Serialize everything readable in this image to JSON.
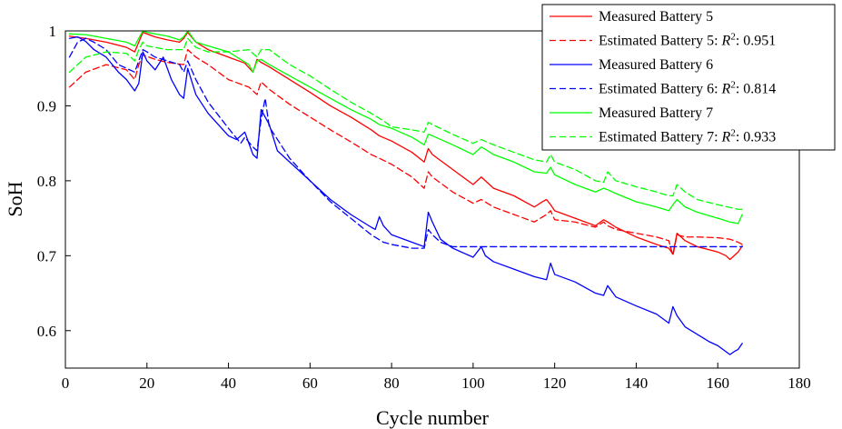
{
  "chart_data": {
    "type": "line",
    "xlabel": "Cycle number",
    "ylabel": "SoH",
    "xlim": [
      0,
      180
    ],
    "ylim": [
      0.55,
      1.0
    ],
    "xticks": [
      0,
      20,
      40,
      60,
      80,
      100,
      120,
      140,
      160,
      180
    ],
    "yticks": [
      0.6,
      0.7,
      0.8,
      0.9,
      1.0
    ],
    "ytick_labels": [
      "0.6",
      "0.7",
      "0.8",
      "0.9",
      "1"
    ],
    "grid": false,
    "legend_position": "top-right",
    "series": [
      {
        "name": "Measured Battery 5",
        "label_text": "Measured Battery 5",
        "color": "#ff0000",
        "dash": "solid",
        "x": [
          1,
          5,
          10,
          15,
          17,
          18,
          19,
          22,
          25,
          28,
          29,
          30,
          32,
          35,
          40,
          44,
          46,
          47,
          48,
          50,
          55,
          60,
          65,
          70,
          75,
          77,
          80,
          85,
          88,
          89,
          90,
          95,
          100,
          102,
          105,
          110,
          115,
          117,
          118,
          119,
          120,
          125,
          130,
          132,
          133,
          135,
          140,
          145,
          148,
          149,
          150,
          152,
          155,
          160,
          162,
          163,
          165,
          166
        ],
        "y": [
          0.993,
          0.99,
          0.985,
          0.978,
          0.972,
          0.985,
          0.998,
          0.992,
          0.988,
          0.985,
          0.99,
          0.998,
          0.985,
          0.975,
          0.965,
          0.957,
          0.945,
          0.962,
          0.958,
          0.952,
          0.935,
          0.918,
          0.9,
          0.885,
          0.868,
          0.86,
          0.853,
          0.838,
          0.825,
          0.843,
          0.835,
          0.815,
          0.795,
          0.805,
          0.79,
          0.78,
          0.765,
          0.772,
          0.775,
          0.768,
          0.76,
          0.75,
          0.74,
          0.748,
          0.745,
          0.738,
          0.725,
          0.715,
          0.71,
          0.702,
          0.73,
          0.72,
          0.712,
          0.705,
          0.7,
          0.695,
          0.705,
          0.713
        ]
      },
      {
        "name": "Estimated Battery 5",
        "label_text": "Estimated Battery 5: ",
        "r2_value": "0.951",
        "color": "#ff0000",
        "dash": "dashed",
        "x": [
          1,
          5,
          10,
          15,
          17,
          18,
          19,
          22,
          25,
          29,
          30,
          32,
          35,
          40,
          45,
          47,
          48,
          50,
          55,
          60,
          65,
          70,
          75,
          77,
          80,
          85,
          88,
          89,
          90,
          95,
          100,
          102,
          105,
          110,
          115,
          118,
          119,
          120,
          125,
          130,
          132,
          133,
          135,
          140,
          145,
          148,
          149,
          150,
          152,
          155,
          160,
          163,
          165,
          166
        ],
        "y": [
          0.925,
          0.945,
          0.955,
          0.948,
          0.935,
          0.955,
          0.968,
          0.962,
          0.958,
          0.955,
          0.975,
          0.965,
          0.955,
          0.935,
          0.925,
          0.915,
          0.932,
          0.922,
          0.902,
          0.885,
          0.868,
          0.852,
          0.835,
          0.83,
          0.822,
          0.805,
          0.79,
          0.812,
          0.805,
          0.785,
          0.77,
          0.775,
          0.765,
          0.755,
          0.745,
          0.755,
          0.76,
          0.748,
          0.745,
          0.738,
          0.745,
          0.74,
          0.735,
          0.73,
          0.725,
          0.72,
          0.7,
          0.728,
          0.725,
          0.725,
          0.724,
          0.722,
          0.718,
          0.715
        ]
      },
      {
        "name": "Measured Battery 6",
        "label_text": "Measured Battery 6",
        "color": "#0000ff",
        "dash": "solid",
        "x": [
          1,
          3,
          5,
          7,
          10,
          13,
          15,
          17,
          18,
          19,
          20,
          22,
          24,
          26,
          28,
          29,
          30,
          32,
          35,
          38,
          40,
          42,
          44,
          46,
          47,
          48,
          50,
          52,
          55,
          60,
          65,
          70,
          75,
          76,
          77,
          78,
          80,
          85,
          88,
          89,
          90,
          92,
          95,
          100,
          102,
          103,
          105,
          110,
          115,
          118,
          119,
          120,
          125,
          130,
          132,
          133,
          135,
          140,
          145,
          148,
          149,
          150,
          152,
          155,
          158,
          160,
          162,
          163,
          164,
          165,
          166
        ],
        "y": [
          0.99,
          0.992,
          0.986,
          0.975,
          0.965,
          0.945,
          0.935,
          0.92,
          0.93,
          0.972,
          0.96,
          0.948,
          0.965,
          0.935,
          0.915,
          0.91,
          0.95,
          0.915,
          0.89,
          0.872,
          0.86,
          0.855,
          0.865,
          0.835,
          0.83,
          0.895,
          0.875,
          0.84,
          0.825,
          0.8,
          0.775,
          0.755,
          0.738,
          0.735,
          0.752,
          0.74,
          0.728,
          0.718,
          0.712,
          0.758,
          0.745,
          0.722,
          0.71,
          0.698,
          0.712,
          0.7,
          0.692,
          0.682,
          0.672,
          0.668,
          0.69,
          0.675,
          0.665,
          0.65,
          0.647,
          0.66,
          0.645,
          0.633,
          0.622,
          0.61,
          0.632,
          0.62,
          0.605,
          0.595,
          0.585,
          0.58,
          0.572,
          0.568,
          0.572,
          0.575,
          0.583
        ]
      },
      {
        "name": "Estimated Battery 6",
        "label_text": "Estimated Battery 6: ",
        "r2_value": "0.814",
        "color": "#0000ff",
        "dash": "dashed",
        "x": [
          1,
          3,
          5,
          7,
          10,
          13,
          15,
          17,
          18,
          19,
          20,
          22,
          25,
          28,
          29,
          30,
          32,
          35,
          40,
          43,
          44,
          46,
          47,
          48,
          49,
          50,
          55,
          60,
          65,
          70,
          75,
          78,
          80,
          85,
          88,
          89,
          90,
          92,
          95,
          100,
          110,
          120,
          130,
          140,
          150,
          160,
          166
        ],
        "y": [
          0.965,
          0.985,
          0.99,
          0.985,
          0.975,
          0.955,
          0.95,
          0.945,
          0.96,
          0.975,
          0.972,
          0.965,
          0.96,
          0.955,
          0.945,
          0.96,
          0.935,
          0.905,
          0.87,
          0.85,
          0.858,
          0.845,
          0.84,
          0.882,
          0.91,
          0.872,
          0.83,
          0.8,
          0.772,
          0.75,
          0.728,
          0.718,
          0.715,
          0.71,
          0.71,
          0.735,
          0.728,
          0.718,
          0.712,
          0.712,
          0.712,
          0.712,
          0.712,
          0.712,
          0.712,
          0.712,
          0.712
        ]
      },
      {
        "name": "Measured Battery 7",
        "label_text": "Measured Battery 7",
        "color": "#00ff00",
        "dash": "solid",
        "x": [
          1,
          5,
          10,
          15,
          17,
          18,
          19,
          20,
          25,
          28,
          29,
          30,
          32,
          35,
          40,
          45,
          46,
          47,
          48,
          50,
          55,
          60,
          65,
          70,
          75,
          77,
          80,
          85,
          88,
          89,
          90,
          95,
          100,
          102,
          103,
          105,
          110,
          115,
          118,
          119,
          120,
          125,
          130,
          132,
          133,
          135,
          140,
          145,
          148,
          149,
          150,
          152,
          155,
          160,
          163,
          165,
          166
        ],
        "y": [
          0.996,
          0.995,
          0.99,
          0.985,
          0.98,
          0.99,
          1.0,
          0.998,
          0.993,
          0.988,
          0.992,
          1.0,
          0.985,
          0.98,
          0.972,
          0.955,
          0.945,
          0.96,
          0.962,
          0.955,
          0.94,
          0.925,
          0.91,
          0.895,
          0.882,
          0.875,
          0.87,
          0.858,
          0.848,
          0.862,
          0.86,
          0.848,
          0.835,
          0.845,
          0.842,
          0.835,
          0.825,
          0.812,
          0.81,
          0.818,
          0.808,
          0.795,
          0.785,
          0.79,
          0.788,
          0.783,
          0.772,
          0.765,
          0.76,
          0.768,
          0.775,
          0.765,
          0.758,
          0.75,
          0.745,
          0.743,
          0.755
        ]
      },
      {
        "name": "Estimated Battery 7",
        "label_text": "Estimated Battery 7: ",
        "r2_value": "0.933",
        "color": "#00ff00",
        "dash": "dashed",
        "x": [
          1,
          5,
          10,
          15,
          17,
          18,
          19,
          20,
          25,
          29,
          30,
          32,
          35,
          40,
          45,
          47,
          48,
          50,
          55,
          60,
          65,
          70,
          75,
          78,
          80,
          85,
          88,
          89,
          90,
          95,
          100,
          102,
          105,
          110,
          115,
          118,
          119,
          120,
          125,
          130,
          132,
          133,
          135,
          140,
          145,
          148,
          149,
          150,
          152,
          155,
          160,
          165,
          166
        ],
        "y": [
          0.945,
          0.965,
          0.972,
          0.97,
          0.96,
          0.975,
          0.985,
          0.98,
          0.975,
          0.975,
          0.99,
          0.978,
          0.972,
          0.972,
          0.975,
          0.965,
          0.975,
          0.975,
          0.955,
          0.94,
          0.922,
          0.905,
          0.89,
          0.88,
          0.872,
          0.868,
          0.865,
          0.878,
          0.875,
          0.862,
          0.85,
          0.855,
          0.848,
          0.838,
          0.828,
          0.825,
          0.835,
          0.825,
          0.815,
          0.8,
          0.798,
          0.812,
          0.8,
          0.792,
          0.785,
          0.78,
          0.78,
          0.795,
          0.785,
          0.775,
          0.768,
          0.762,
          0.762
        ]
      }
    ]
  }
}
